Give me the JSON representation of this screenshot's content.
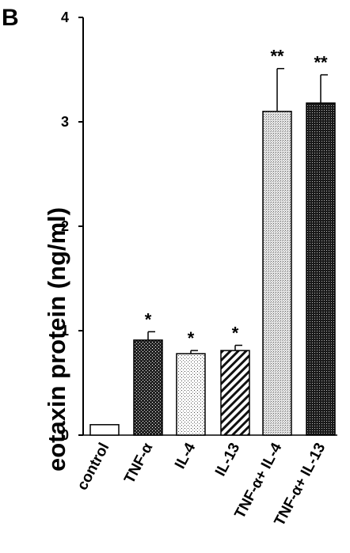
{
  "chart_data": {
    "type": "bar",
    "panel_label": "B",
    "ylabel": "eotaxin protein   (ng/ml)",
    "xlabel": "",
    "ylim": [
      0,
      4
    ],
    "yticks": [
      "0",
      "1",
      "2",
      "3",
      "4"
    ],
    "grid": false,
    "categories": [
      "control",
      "TNF-α",
      "IL-4",
      "IL-13",
      "TNF-α+ IL-4",
      "TNF-α+ IL-13"
    ],
    "values": [
      0.1,
      0.91,
      0.78,
      0.81,
      3.1,
      3.18
    ],
    "errors": [
      0,
      0.08,
      0.03,
      0.05,
      0.41,
      0.27
    ],
    "significance": [
      "",
      "*",
      "*",
      "*",
      "**",
      "**"
    ],
    "bar_patterns": [
      "white",
      "dark-crosshatch",
      "light-dots",
      "diagonal-stripes",
      "light-dense-dots",
      "dark-dense-dots"
    ]
  }
}
